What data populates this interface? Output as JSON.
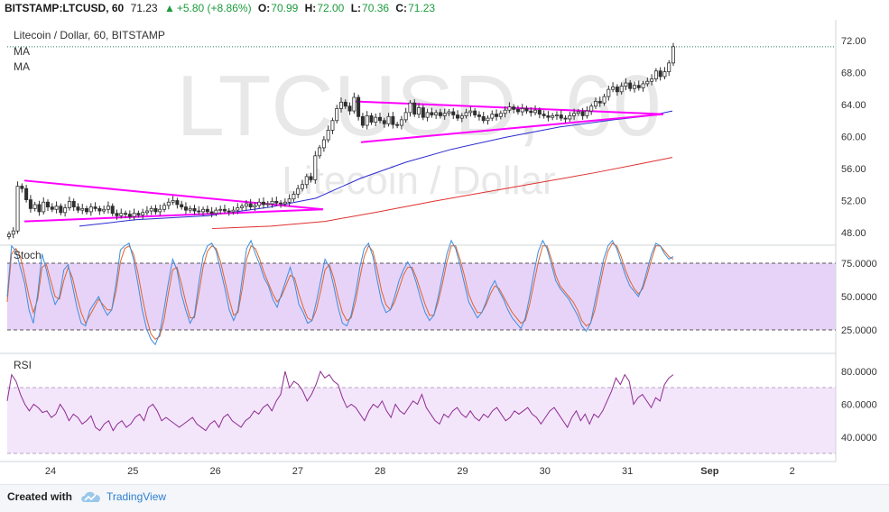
{
  "header": {
    "symbol": "BITSTAMP:LTCUSD, 60",
    "price": "71.23",
    "change_arrow": "▲",
    "change": "+5.80 (+8.86%)",
    "open_label": "O:",
    "open": "70.99",
    "high_label": "H:",
    "high": "72.00",
    "low_label": "L:",
    "low": "70.36",
    "close_label": "C:",
    "close": "71.23"
  },
  "legend": {
    "title": "Litecoin / Dollar, 60, BITSTAMP",
    "ma1": "MA",
    "ma2": "MA",
    "stoch": "Stoch",
    "rsi": "RSI"
  },
  "watermark": {
    "big": "LTCUSD, 60",
    "small": "Litecoin / Dollar"
  },
  "footer": {
    "created": "Created with",
    "brand": "TradingView"
  },
  "colors": {
    "up": "#1c9b3c",
    "triangle": "#ff00ff",
    "ma_fast": "#2a2ad0",
    "ma_slow": "#e03030",
    "stoch_k": "#3b8ede",
    "stoch_d": "#e0632a",
    "rsi": "#8e2b91"
  },
  "chart_data": {
    "price_panel": {
      "type": "candlestick",
      "y_ticks": [
        "72.00",
        "68.00",
        "64.00",
        "60.00",
        "56.00",
        "52.00",
        "48.00"
      ],
      "x_ticks": [
        "24",
        "25",
        "26",
        "27",
        "28",
        "29",
        "30",
        "31",
        "Sep",
        "2"
      ],
      "last_price": 71.23,
      "closes": [
        47.8,
        48.2,
        53.8,
        53.5,
        52.1,
        51.0,
        51.5,
        50.6,
        51.8,
        51.2,
        50.9,
        51.3,
        50.5,
        51.1,
        51.9,
        51.2,
        50.8,
        51.0,
        50.6,
        51.2,
        51.0,
        50.7,
        50.9,
        51.3,
        50.4,
        50.1,
        50.4,
        50.3,
        50.0,
        50.4,
        50.2,
        50.5,
        50.7,
        51.0,
        50.6,
        50.9,
        51.4,
        51.8,
        52.0,
        51.5,
        51.2,
        50.8,
        51.0,
        50.7,
        50.6,
        50.9,
        50.6,
        50.4,
        50.8,
        50.9,
        50.7,
        50.6,
        50.8,
        51.1,
        51.3,
        51.6,
        51.2,
        51.4,
        51.8,
        51.5,
        51.6,
        51.9,
        51.7,
        51.6,
        51.8,
        52.2,
        52.8,
        53.5,
        54.0,
        55.0,
        54.6,
        57.6,
        58.6,
        59.6,
        60.8,
        62.0,
        63.5,
        64.3,
        63.8,
        63.2,
        64.9,
        62.5,
        61.4,
        62.6,
        61.8,
        62.4,
        62.0,
        61.6,
        62.5,
        61.5,
        61.4,
        62.1,
        63.0,
        64.2,
        62.8,
        63.6,
        62.4,
        63.0,
        62.7,
        63.0,
        62.6,
        62.9,
        63.1,
        62.7,
        62.3,
        62.6,
        63.0,
        63.2,
        62.7,
        62.5,
        62.0,
        62.3,
        62.8,
        62.5,
        62.9,
        63.3,
        63.7,
        63.4,
        63.1,
        63.5,
        63.2,
        63.0,
        63.3,
        62.8,
        62.6,
        62.4,
        62.6,
        62.7,
        62.3,
        62.2,
        62.6,
        62.9,
        63.1,
        62.6,
        63.2,
        63.8,
        64.4,
        64.2,
        65.0,
        65.9,
        66.2,
        65.6,
        66.3,
        66.7,
        66.0,
        66.4,
        66.1,
        66.6,
        66.9,
        67.2,
        68.2,
        67.5,
        68.1,
        69.2,
        71.23
      ],
      "triangles": [
        {
          "name": "triangle-1-upper",
          "x1": 27,
          "y1": 54.5,
          "x2": 358,
          "y2": 50.9
        },
        {
          "name": "triangle-1-lower",
          "x1": 27,
          "y1": 49.4,
          "x2": 358,
          "y2": 50.9
        },
        {
          "name": "triangle-2-upper",
          "x1": 392,
          "y1": 64.4,
          "x2": 735,
          "y2": 62.8
        },
        {
          "name": "triangle-2-lower",
          "x1": 400,
          "y1": 59.3,
          "x2": 735,
          "y2": 62.8
        }
      ],
      "ma_fast": [
        [
          88,
          48.8
        ],
        [
          150,
          49.6
        ],
        [
          230,
          50.1
        ],
        [
          300,
          51.2
        ],
        [
          350,
          52.3
        ],
        [
          400,
          54.8
        ],
        [
          450,
          56.8
        ],
        [
          500,
          58.4
        ],
        [
          560,
          59.9
        ],
        [
          620,
          61.2
        ],
        [
          680,
          62.1
        ],
        [
          720,
          62.6
        ],
        [
          745,
          63.2
        ]
      ],
      "ma_slow": [
        [
          235,
          48.5
        ],
        [
          300,
          48.8
        ],
        [
          360,
          49.4
        ],
        [
          420,
          50.6
        ],
        [
          480,
          51.9
        ],
        [
          540,
          53.1
        ],
        [
          600,
          54.3
        ],
        [
          660,
          55.5
        ],
        [
          710,
          56.6
        ],
        [
          745,
          57.4
        ]
      ]
    },
    "stoch_panel": {
      "type": "line",
      "y_ticks": [
        "75.0000",
        "50.0000",
        "25.0000"
      ],
      "k": [
        50,
        88,
        84,
        72,
        60,
        40,
        30,
        52,
        82,
        70,
        55,
        44,
        50,
        70,
        74,
        58,
        42,
        30,
        28,
        40,
        45,
        50,
        42,
        36,
        40,
        60,
        85,
        88,
        90,
        78,
        60,
        40,
        26,
        18,
        14,
        22,
        40,
        60,
        78,
        70,
        52,
        40,
        30,
        36,
        60,
        80,
        88,
        90,
        84,
        70,
        56,
        40,
        32,
        40,
        64,
        86,
        92,
        82,
        74,
        64,
        58,
        48,
        42,
        52,
        62,
        72,
        60,
        44,
        38,
        30,
        32,
        46,
        62,
        78,
        72,
        58,
        42,
        30,
        28,
        36,
        52,
        72,
        86,
        90,
        80,
        62,
        46,
        38,
        40,
        50,
        62,
        70,
        76,
        70,
        60,
        48,
        38,
        32,
        36,
        50,
        66,
        82,
        92,
        86,
        74,
        60,
        46,
        40,
        34,
        38,
        46,
        56,
        62,
        54,
        48,
        40,
        34,
        30,
        26,
        34,
        50,
        68,
        84,
        92,
        86,
        74,
        62,
        56,
        52,
        48,
        42,
        36,
        28,
        24,
        30,
        46,
        62,
        78,
        88,
        92,
        86,
        76,
        66,
        58,
        54,
        50,
        58,
        70,
        82,
        90,
        88,
        82,
        78,
        80
      ],
      "d": [
        46,
        82,
        86,
        80,
        66,
        50,
        38,
        48,
        72,
        74,
        62,
        50,
        48,
        62,
        72,
        64,
        50,
        38,
        30,
        36,
        42,
        48,
        44,
        40,
        40,
        54,
        76,
        86,
        88,
        82,
        68,
        50,
        34,
        22,
        18,
        20,
        32,
        52,
        70,
        72,
        60,
        46,
        34,
        34,
        52,
        72,
        84,
        88,
        86,
        76,
        62,
        48,
        36,
        38,
        56,
        78,
        88,
        86,
        78,
        68,
        60,
        52,
        46,
        50,
        58,
        66,
        64,
        52,
        42,
        34,
        32,
        40,
        54,
        70,
        74,
        64,
        50,
        38,
        32,
        34,
        46,
        64,
        80,
        88,
        84,
        70,
        54,
        44,
        40,
        46,
        56,
        66,
        72,
        72,
        64,
        54,
        44,
        36,
        36,
        46,
        60,
        76,
        88,
        88,
        78,
        66,
        52,
        44,
        38,
        38,
        44,
        52,
        58,
        56,
        50,
        44,
        38,
        34,
        30,
        32,
        44,
        60,
        76,
        88,
        88,
        78,
        66,
        58,
        54,
        50,
        46,
        40,
        32,
        28,
        30,
        40,
        56,
        72,
        84,
        90,
        88,
        80,
        70,
        62,
        56,
        52,
        56,
        66,
        78,
        88,
        88,
        84,
        80,
        78
      ]
    },
    "rsi_panel": {
      "type": "line",
      "y_ticks": [
        "80.0000",
        "60.0000",
        "40.0000"
      ],
      "bands": [
        70,
        30
      ],
      "rsi": [
        62,
        78,
        74,
        66,
        60,
        56,
        60,
        58,
        55,
        56,
        52,
        54,
        60,
        56,
        50,
        54,
        52,
        48,
        50,
        53,
        46,
        44,
        48,
        50,
        44,
        48,
        50,
        46,
        48,
        52,
        54,
        50,
        58,
        60,
        56,
        50,
        52,
        50,
        48,
        46,
        48,
        50,
        52,
        48,
        46,
        44,
        48,
        50,
        46,
        52,
        54,
        50,
        48,
        46,
        50,
        52,
        56,
        54,
        58,
        60,
        56,
        62,
        66,
        80,
        70,
        74,
        72,
        68,
        62,
        66,
        72,
        80,
        76,
        78,
        74,
        72,
        64,
        58,
        60,
        58,
        54,
        50,
        56,
        60,
        58,
        62,
        56,
        52,
        60,
        56,
        54,
        58,
        62,
        60,
        66,
        58,
        54,
        50,
        48,
        54,
        52,
        56,
        58,
        54,
        52,
        56,
        52,
        50,
        54,
        52,
        56,
        58,
        54,
        50,
        52,
        56,
        54,
        56,
        58,
        54,
        52,
        48,
        52,
        56,
        58,
        54,
        50,
        46,
        52,
        56,
        50,
        54,
        48,
        54,
        52,
        56,
        62,
        68,
        76,
        72,
        78,
        74,
        60,
        64,
        66,
        62,
        58,
        64,
        62,
        72,
        76,
        78
      ]
    }
  }
}
